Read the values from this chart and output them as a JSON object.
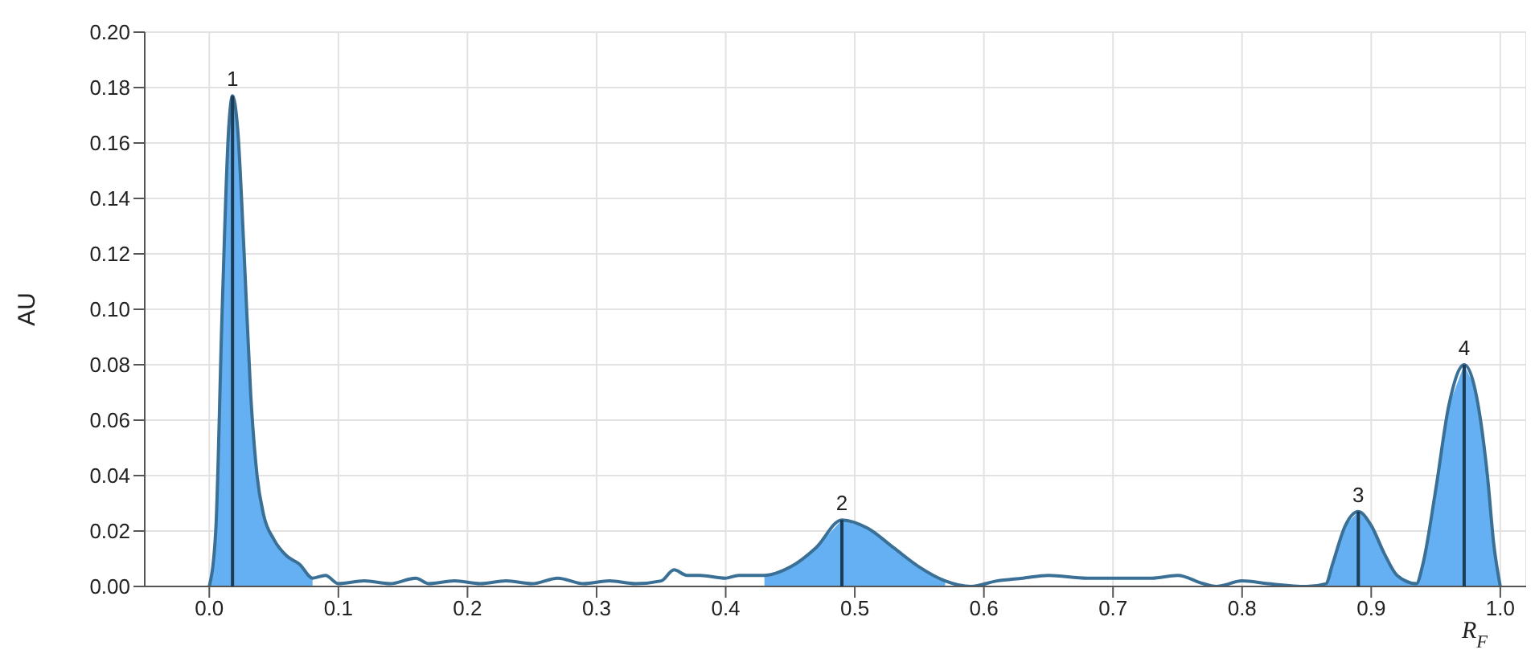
{
  "chart_data": {
    "type": "line",
    "xlabel": "R$_{F}$",
    "ylabel": "AU",
    "xlim": [
      -0.05,
      1.02
    ],
    "ylim": [
      0,
      0.2
    ],
    "xticks": [
      {
        "value": 0,
        "label": "0.0"
      },
      0.1,
      0.2,
      0.3,
      0.4,
      0.5,
      0.6,
      0.7,
      0.8,
      0.9,
      {
        "value": 1,
        "label": "1.0"
      }
    ],
    "yticks": [
      {
        "value": 0,
        "label": "0.00"
      },
      0.02,
      0.04,
      0.06,
      0.08,
      {
        "value": 0.1,
        "label": "0.10"
      },
      0.12,
      0.14,
      0.16,
      0.18,
      {
        "value": 0.2,
        "label": "0.20"
      }
    ],
    "grid": true,
    "legend": false,
    "marker": "none",
    "line_style": "solid",
    "series": [
      {
        "type": "area",
        "color": "#64b0f2",
        "x": [
          0,
          0.005,
          0.01,
          0.015,
          0.018,
          0.022,
          0.027,
          0.032,
          0.037,
          0.042,
          0.05,
          0.06,
          0.07,
          0.08
        ],
        "values": [
          0,
          0.02,
          0.1,
          0.165,
          0.177,
          0.165,
          0.12,
          0.07,
          0.04,
          0.026,
          0.017,
          0.011,
          0.008,
          0.003
        ]
      },
      {
        "type": "area",
        "color": "#64b0f2",
        "x": [
          0.43,
          0.45,
          0.47,
          0.49,
          0.51,
          0.53,
          0.55,
          0.57
        ],
        "values": [
          0.004,
          0.007,
          0.014,
          0.024,
          0.021,
          0.014,
          0.007,
          0.002
        ]
      },
      {
        "type": "area",
        "color": "#64b0f2",
        "x": [
          0.865,
          0.87,
          0.88,
          0.89,
          0.9,
          0.91,
          0.92,
          0.935
        ],
        "values": [
          0.001,
          0.008,
          0.022,
          0.027,
          0.022,
          0.012,
          0.004,
          0.001
        ]
      },
      {
        "type": "area",
        "color": "#64b0f2",
        "x": [
          0.935,
          0.94,
          0.95,
          0.96,
          0.972,
          0.98,
          0.99,
          0.995,
          1.0
        ],
        "values": [
          0.001,
          0.008,
          0.035,
          0.065,
          0.08,
          0.072,
          0.04,
          0.015,
          0
        ]
      },
      {
        "type": "line",
        "color": "#3a6f96",
        "x": [
          0,
          0.005,
          0.01,
          0.015,
          0.018,
          0.022,
          0.027,
          0.032,
          0.037,
          0.042,
          0.05,
          0.06,
          0.07,
          0.08,
          0.09,
          0.1,
          0.12,
          0.14,
          0.16,
          0.17,
          0.19,
          0.21,
          0.23,
          0.25,
          0.27,
          0.29,
          0.31,
          0.33,
          0.35,
          0.36,
          0.37,
          0.38,
          0.4,
          0.41,
          0.43,
          0.45,
          0.47,
          0.49,
          0.51,
          0.53,
          0.55,
          0.57,
          0.59,
          0.61,
          0.63,
          0.65,
          0.68,
          0.7,
          0.73,
          0.75,
          0.77,
          0.78,
          0.8,
          0.82,
          0.85,
          0.865,
          0.87,
          0.88,
          0.89,
          0.9,
          0.91,
          0.92,
          0.935,
          0.94,
          0.95,
          0.96,
          0.972,
          0.98,
          0.99,
          0.995,
          1.0
        ],
        "values": [
          0,
          0.02,
          0.1,
          0.165,
          0.177,
          0.165,
          0.12,
          0.07,
          0.04,
          0.026,
          0.017,
          0.011,
          0.008,
          0.003,
          0.004,
          0.001,
          0.002,
          0.001,
          0.003,
          0.001,
          0.002,
          0.001,
          0.002,
          0.001,
          0.003,
          0.001,
          0.002,
          0.001,
          0.002,
          0.006,
          0.004,
          0.004,
          0.003,
          0.004,
          0.004,
          0.007,
          0.014,
          0.024,
          0.021,
          0.014,
          0.007,
          0.002,
          0,
          0.002,
          0.003,
          0.004,
          0.003,
          0.003,
          0.003,
          0.004,
          0.001,
          0,
          0.002,
          0.001,
          0,
          0.001,
          0.008,
          0.022,
          0.027,
          0.022,
          0.012,
          0.004,
          0.001,
          0.008,
          0.035,
          0.065,
          0.08,
          0.072,
          0.04,
          0.015,
          0
        ]
      },
      {
        "type": "bar",
        "color": "#1d3c55",
        "x": [
          0.018,
          0.49,
          0.89,
          0.972
        ],
        "values": [
          0.177,
          0.024,
          0.027,
          0.08
        ]
      }
    ],
    "annotations": [
      {
        "text": "1",
        "x": 0.018,
        "y": 0.177
      },
      {
        "text": "2",
        "x": 0.49,
        "y": 0.024
      },
      {
        "text": "3",
        "x": 0.89,
        "y": 0.027
      },
      {
        "text": "4",
        "x": 0.972,
        "y": 0.08
      }
    ]
  }
}
